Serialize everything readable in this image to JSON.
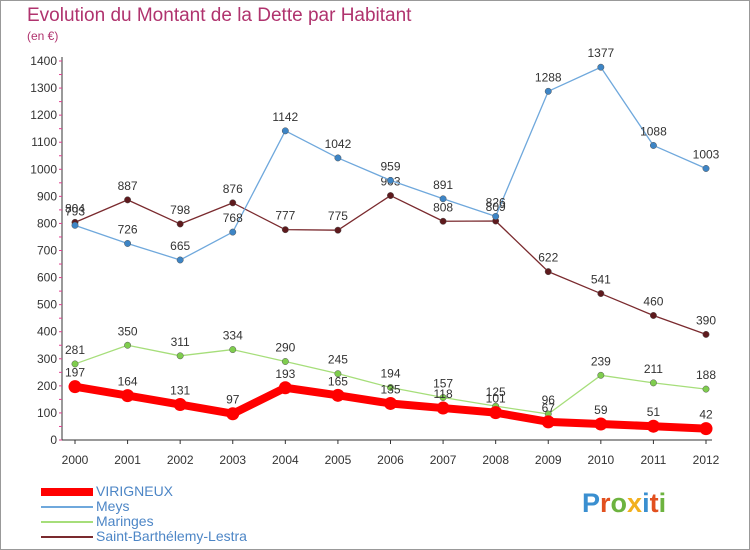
{
  "title": "Evolution du Montant de la Dette par Habitant",
  "unit": "(en €)",
  "logo": {
    "text": "Proxiti",
    "colors": [
      "#3a8fd0",
      "#e2501f",
      "#6db33f",
      "#f2b01e",
      "#3a8fd0",
      "#e2501f",
      "#6db33f"
    ]
  },
  "chart_data": {
    "type": "line",
    "title": "Evolution du Montant de la Dette par Habitant",
    "ylabel": "(en €)",
    "x": [
      "2000",
      "2001",
      "2002",
      "2003",
      "2004",
      "2005",
      "2006",
      "2007",
      "2008",
      "2009",
      "2010",
      "2011",
      "2012"
    ],
    "ylim": [
      0,
      1400
    ],
    "yticks": [
      0,
      100,
      200,
      300,
      400,
      500,
      600,
      700,
      800,
      900,
      1000,
      1100,
      1200,
      1300,
      1400
    ],
    "grid": false,
    "legend": "bottom",
    "series": [
      {
        "name": "Saint-Barthélemy-Lestra",
        "color": "#7a2a2e",
        "dot": "#5e1a1d",
        "width": 1.3,
        "values": [
          804,
          887,
          798,
          876,
          777,
          775,
          903,
          808,
          809,
          622,
          541,
          460,
          390
        ]
      },
      {
        "name": "Meys",
        "color": "#6fa8dc",
        "dot": "#3d85c6",
        "width": 1.3,
        "values": [
          793,
          726,
          665,
          768,
          1142,
          1042,
          959,
          891,
          826,
          1288,
          1377,
          1088,
          1003
        ]
      },
      {
        "name": "Maringes",
        "color": "#a6de7a",
        "dot": "#7fcd4e",
        "width": 1.3,
        "values": [
          281,
          350,
          311,
          334,
          290,
          245,
          194,
          157,
          125,
          96,
          239,
          211,
          188
        ]
      },
      {
        "name": "VIRIGNEUX",
        "color": "#ff0000",
        "dot": "#ff0000",
        "width": 8,
        "values": [
          197,
          164,
          131,
          97,
          193,
          165,
          135,
          118,
          101,
          67,
          59,
          51,
          42
        ]
      }
    ],
    "legend_order": [
      "VIRIGNEUX",
      "Meys",
      "Maringes",
      "Saint-Barthélemy-Lestra"
    ]
  }
}
